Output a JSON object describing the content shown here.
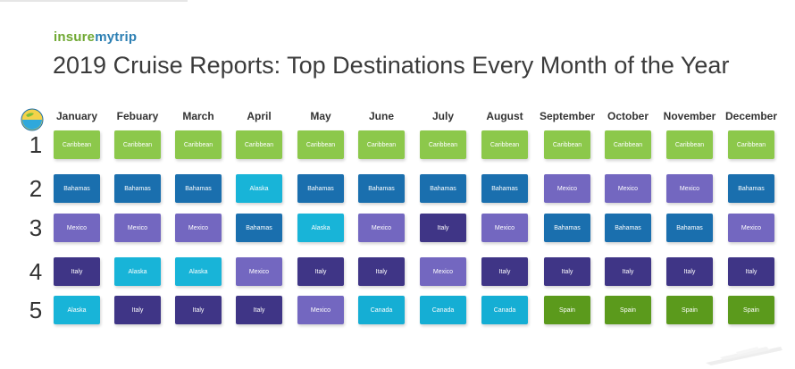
{
  "logo": {
    "part1": "insure",
    "part2": "mytrip"
  },
  "title": "2019 Cruise Reports: Top Destinations Every Month of the Year",
  "months": [
    "January",
    "Febuary",
    "March",
    "April",
    "May",
    "June",
    "July",
    "August",
    "September",
    "October",
    "November",
    "December"
  ],
  "ranks": [
    "1",
    "2",
    "3",
    "4",
    "5"
  ],
  "grid": [
    [
      "Caribbean",
      "Caribbean",
      "Caribbean",
      "Caribbean",
      "Caribbean",
      "Caribbean",
      "Caribbean",
      "Caribbean",
      "Caribbean",
      "Caribbean",
      "Caribbean",
      "Caribbean"
    ],
    [
      "Bahamas",
      "Bahamas",
      "Bahamas",
      "Alaska",
      "Bahamas",
      "Bahamas",
      "Bahamas",
      "Bahamas",
      "Mexico",
      "Mexico",
      "Mexico",
      "Bahamas"
    ],
    [
      "Mexico",
      "Mexico",
      "Mexico",
      "Bahamas",
      "Alaska",
      "Mexico",
      "Italy",
      "Mexico",
      "Bahamas",
      "Bahamas",
      "Bahamas",
      "Mexico"
    ],
    [
      "Italy",
      "Alaska",
      "Alaska",
      "Mexico",
      "Italy",
      "Italy",
      "Mexico",
      "Italy",
      "Italy",
      "Italy",
      "Italy",
      "Italy"
    ],
    [
      "Alaska",
      "Italy",
      "Italy",
      "Italy",
      "Mexico",
      "Canada",
      "Canada",
      "Canada",
      "Spain",
      "Spain",
      "Spain",
      "Spain"
    ]
  ],
  "colors": {
    "Caribbean": "#8cc84b",
    "Bahamas": "#1a6fae",
    "Mexico": "#7367c0",
    "Alaska": "#18b4d8",
    "Italy": "#3f3586",
    "Canada": "#15aed4",
    "Spain": "#5b9a1c"
  },
  "icons": {
    "globe": "globe-icon",
    "ship": "cruise-ship-icon"
  }
}
